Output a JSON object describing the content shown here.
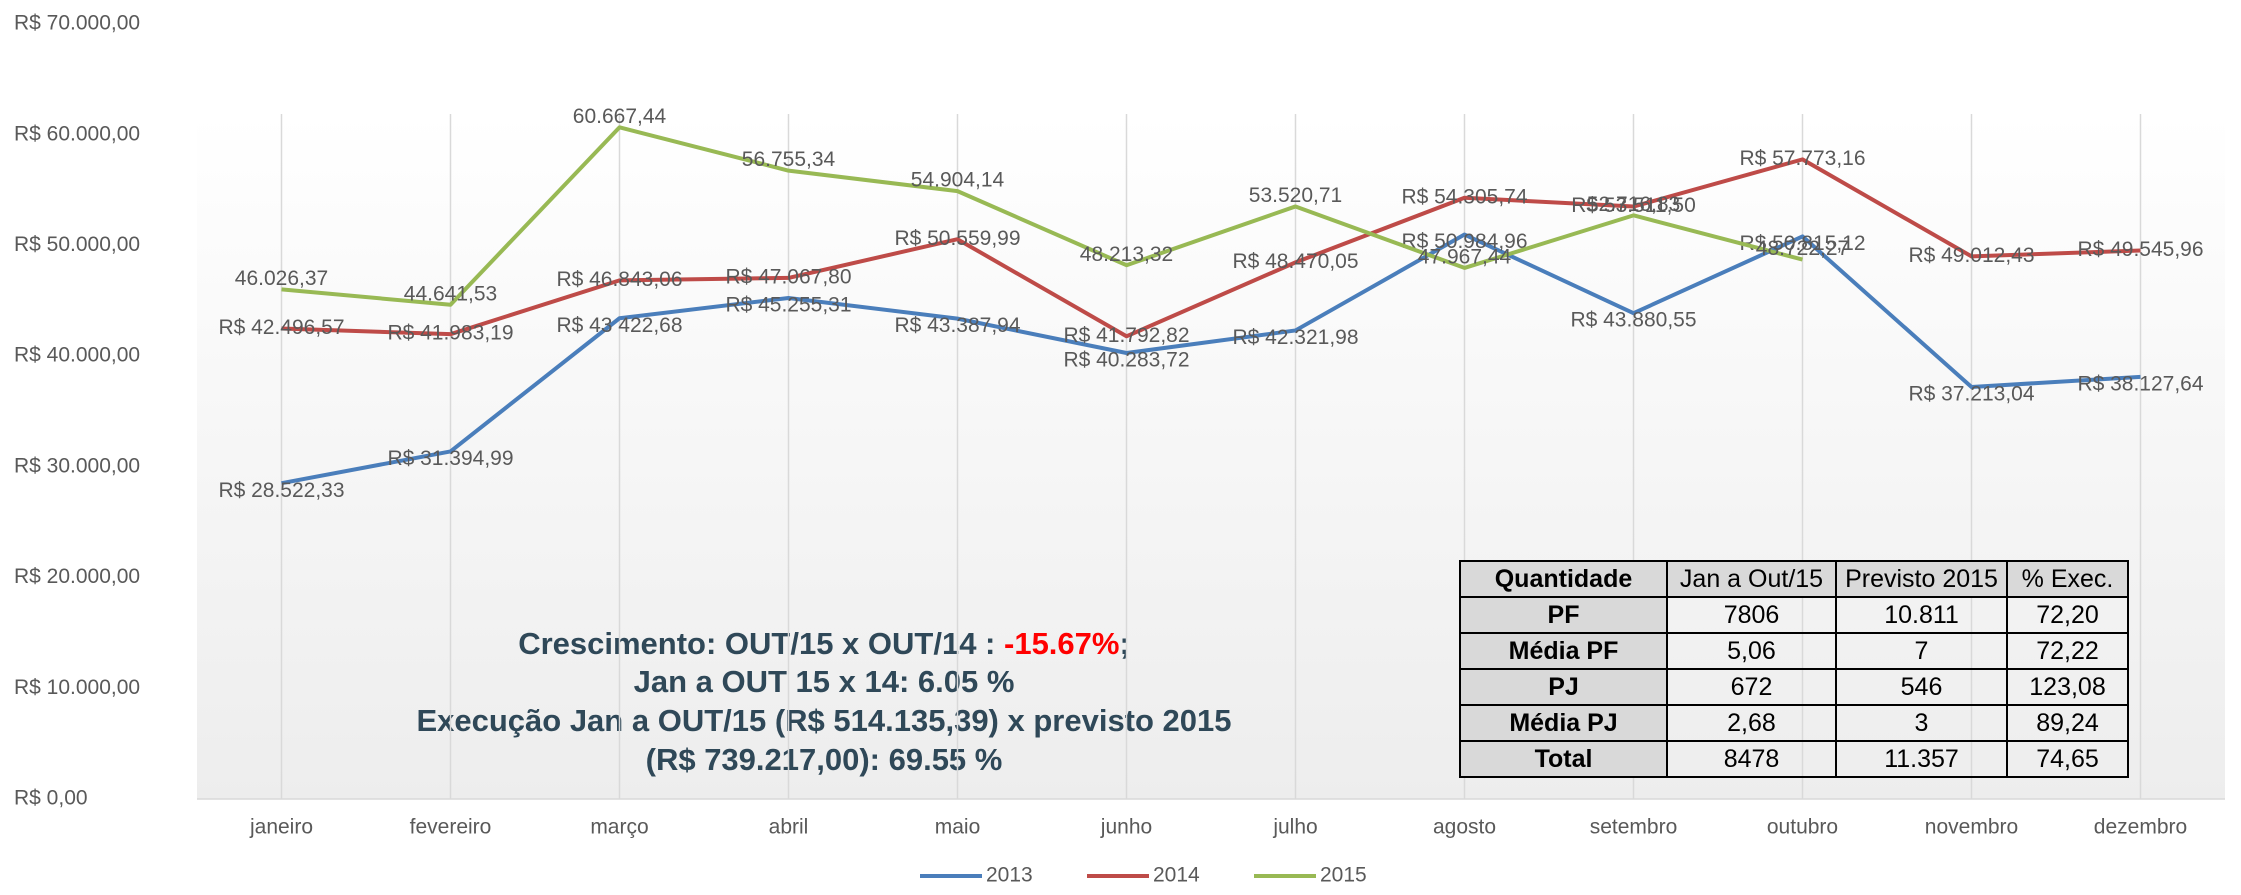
{
  "chart_data": {
    "type": "line",
    "categories": [
      "janeiro",
      "fevereiro",
      "março",
      "abril",
      "maio",
      "junho",
      "julho",
      "agosto",
      "setembro",
      "outubro",
      "novembro",
      "dezembro"
    ],
    "series": [
      {
        "name": "2013",
        "color": "#4a7ebb",
        "values": [
          28522.33,
          31394.99,
          43422.68,
          45255.31,
          43387.94,
          40283.72,
          42321.98,
          50984.96,
          43880.55,
          50815.12,
          37213.04,
          38127.64
        ],
        "value_labels": [
          "R$ 28.522,33",
          "R$ 31.394,99",
          "R$ 43 422,68",
          "R$ 45.255,31",
          "R$ 43.387,94",
          "R$ 40.283,72",
          "R$ 42.321,98",
          "R$ 50.984,96",
          "R$ 43.880,55",
          "R$ 50.815,12",
          "R$ 37.213,04",
          "R$ 38.127,64"
        ]
      },
      {
        "name": "2014",
        "color": "#be4b48",
        "values": [
          42496.57,
          41983.19,
          46843.06,
          47067.8,
          50559.99,
          41792.82,
          48470.05,
          54305.74,
          53511.5,
          57773.16,
          49012.43,
          49545.96
        ],
        "value_labels": [
          "R$ 42.496,57",
          "R$ 41.983,19",
          "R$ 46.843,06",
          "R$ 47.067,80",
          "R$ 50.559,99",
          "R$ 41.792,82",
          "R$ 48.470,05",
          "R$ 54.305,74",
          "R$ 53.511,50",
          "R$ 57.773,16",
          "R$ 49.012,43",
          "R$ 49.545,96"
        ]
      },
      {
        "name": "2015",
        "color": "#98b954",
        "values": [
          46026.37,
          44641.53,
          60667.44,
          56755.34,
          54904.14,
          48213.32,
          53520.71,
          47967.44,
          52716.83,
          48722.27,
          null,
          null
        ],
        "value_labels": [
          "46.026,37",
          "44.641,53",
          "60.667,44",
          "56.755,34",
          "54.904,14",
          "48.213,32",
          "53.520,71",
          "47.967,44",
          "52.716,83",
          "48.722,27",
          null,
          null
        ]
      }
    ],
    "ylim": [
      0,
      70000
    ],
    "yticks": [
      {
        "value": 0,
        "label": "R$ 0,00"
      },
      {
        "value": 10000,
        "label": "R$ 10.000,00"
      },
      {
        "value": 20000,
        "label": "R$ 20.000,00"
      },
      {
        "value": 30000,
        "label": "R$ 30.000,00"
      },
      {
        "value": 40000,
        "label": "R$ 40.000,00"
      },
      {
        "value": 50000,
        "label": "R$ 50.000,00"
      },
      {
        "value": 60000,
        "label": "R$ 60.000,00"
      },
      {
        "value": 70000,
        "label": "R$ 70.000,00"
      }
    ],
    "legend": "bottom",
    "annotation": {
      "prefix": "Crescimento: OUT/15 x OUT/14 : ",
      "highlight": "-15.67%",
      "suffix": ";",
      "lines": [
        "Jan a OUT 15 x 14: 6.05 %",
        "Execução Jan a OUT/15 (R$ 514.135,39) x previsto 2015",
        "(R$ 739.217,00): 69.55 %"
      ]
    }
  },
  "table": {
    "header": [
      "Quantidade",
      "Jan a Out/15",
      "Previsto 2015",
      "% Exec."
    ],
    "rows": [
      [
        "PF",
        "7806",
        "10.811",
        "72,20"
      ],
      [
        "Média PF",
        "5,06",
        "7",
        "72,22"
      ],
      [
        "PJ",
        "672",
        "546",
        "123,08"
      ],
      [
        "Média PJ",
        "2,68",
        "3",
        "89,24"
      ],
      [
        "Total",
        "8478",
        "11.357",
        "74,65"
      ]
    ]
  }
}
